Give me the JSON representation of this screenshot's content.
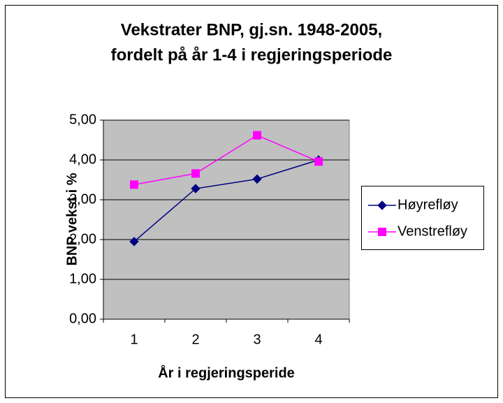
{
  "chart_data": {
    "type": "line",
    "title": [
      "Vekstrater BNP, gj.sn. 1948-2005,",
      "fordelt på år 1-4 i regjeringsperiode"
    ],
    "x_label": "År i regjeringsperide",
    "y_label": "BNP vekst i %",
    "categories": [
      "1",
      "2",
      "3",
      "4"
    ],
    "series": [
      {
        "name": "Høyrefløy",
        "color": "#000080",
        "marker": "diamond",
        "values": [
          1.95,
          3.28,
          3.52,
          4.0
        ]
      },
      {
        "name": "Venstrefløy",
        "color": "#ff00ff",
        "marker": "square",
        "values": [
          3.38,
          3.66,
          4.62,
          3.96
        ]
      }
    ],
    "ylim": [
      0,
      5
    ],
    "yticks": [
      {
        "value": 0,
        "label": "0,00"
      },
      {
        "value": 1,
        "label": "1,00"
      },
      {
        "value": 2,
        "label": "2,00"
      },
      {
        "value": 3,
        "label": "3,00"
      },
      {
        "value": 4,
        "label": "4,00"
      },
      {
        "value": 5,
        "label": "5,00"
      }
    ],
    "grid": true,
    "legend": "right"
  }
}
